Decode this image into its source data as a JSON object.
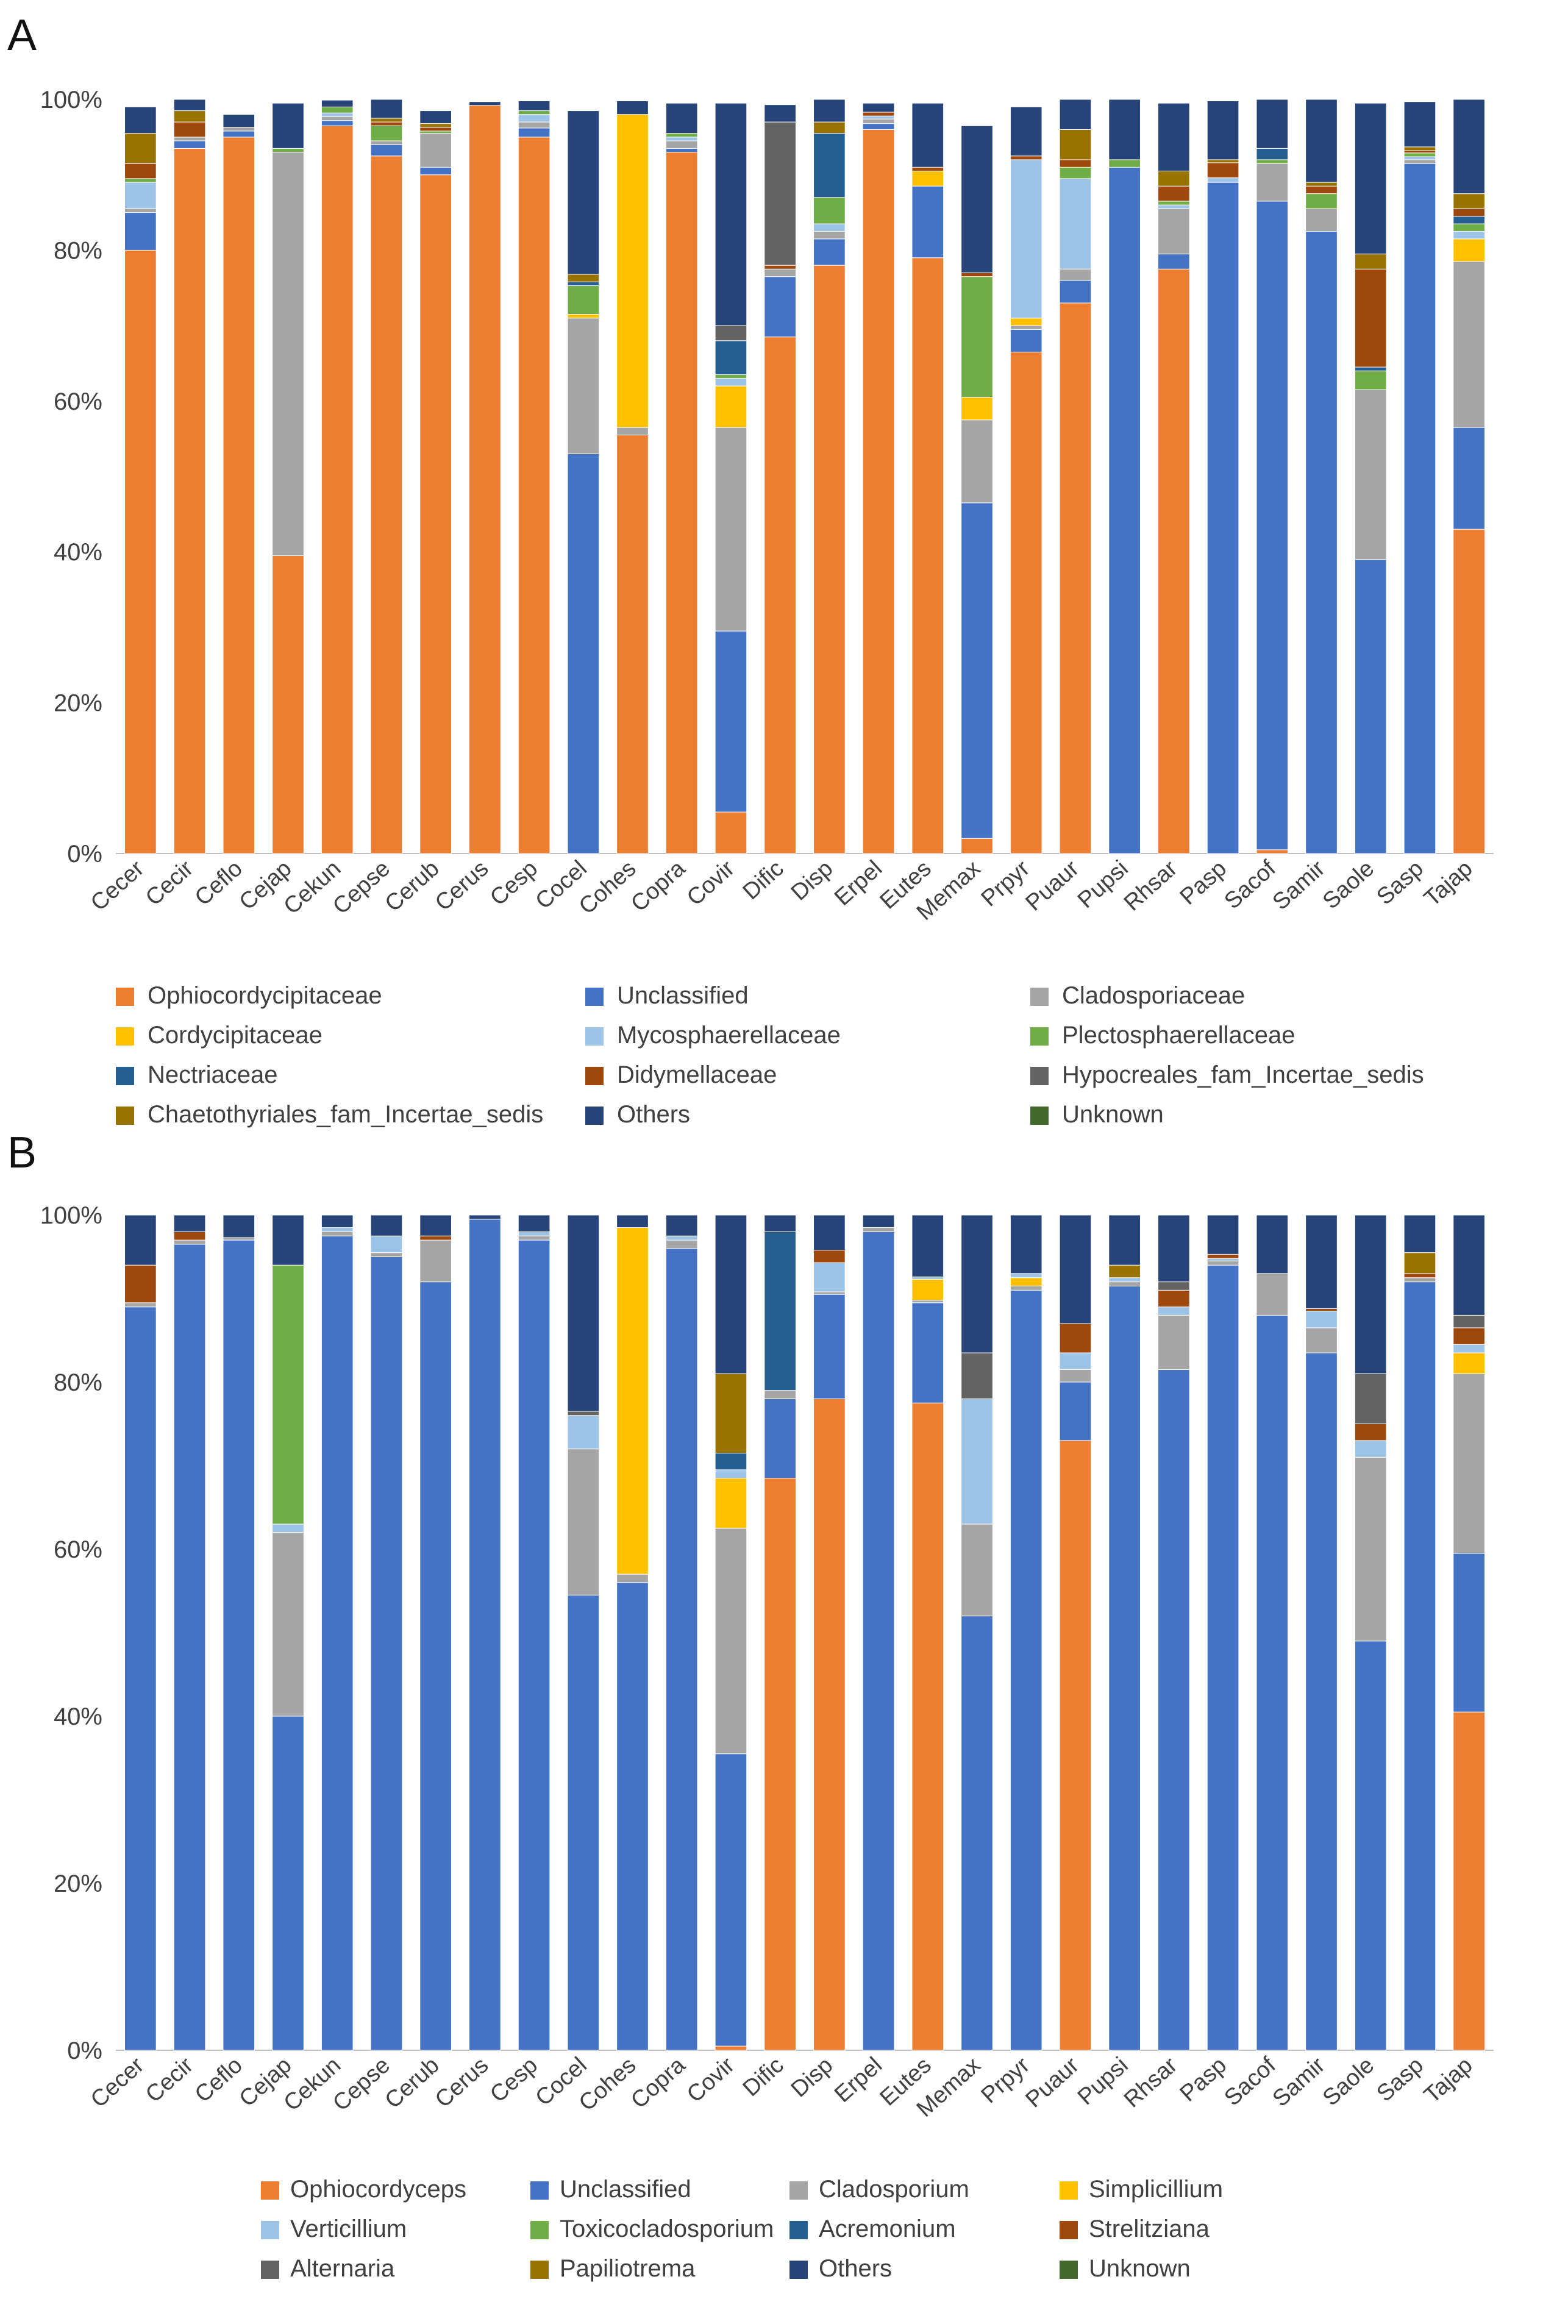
{
  "colors": {
    "orange": "#ED7D31",
    "blue": "#4472C4",
    "gray": "#A5A5A5",
    "yellow": "#FFC000",
    "lightblue": "#9DC3E6",
    "green": "#70AD47",
    "teal": "#255E91",
    "rust": "#9E480E",
    "darkgray": "#636363",
    "olive": "#997300",
    "navy": "#264478",
    "darkgreen": "#43682B"
  },
  "chart_data": [
    {
      "panel": "A",
      "type": "bar",
      "stacked": true,
      "title": "",
      "xlabel": "",
      "ylabel": "",
      "ylim": [
        0,
        100
      ],
      "yticks": [
        "0%",
        "20%",
        "40%",
        "60%",
        "80%",
        "100%"
      ],
      "legend_position": "bottom",
      "categories": [
        "Cecer",
        "Cecir",
        "Ceflo",
        "Cejap",
        "Cekun",
        "Cepse",
        "Cerub",
        "Cerus",
        "Cesp",
        "Cocel",
        "Cohes",
        "Copra",
        "Covir",
        "Dific",
        "Disp",
        "Erpel",
        "Eutes",
        "Memax",
        "Prpyr",
        "Puaur",
        "Pupsi",
        "Rhsar",
        "Pasp",
        "Sacof",
        "Samir",
        "Saole",
        "Sasp",
        "Tajap"
      ],
      "series": [
        {
          "name": "Ophiocordycipitaceae",
          "color": "orange",
          "values": [
            80,
            93.5,
            95,
            39.5,
            96.5,
            92.5,
            90,
            99.2,
            95,
            0,
            55.5,
            93,
            5.5,
            68.5,
            78,
            96,
            79,
            2,
            66.5,
            73,
            0,
            77.5,
            0,
            0.5,
            0,
            0,
            0,
            43
          ]
        },
        {
          "name": "Unclassified",
          "color": "blue",
          "values": [
            5,
            1,
            0.8,
            0,
            0.7,
            1.5,
            1,
            0,
            1.2,
            53,
            0,
            0.5,
            24,
            8,
            3.5,
            0.8,
            9.5,
            44.5,
            3,
            3,
            91,
            2,
            89,
            86,
            82.5,
            39,
            91.5,
            13.5
          ]
        },
        {
          "name": "Cladosporiaceae",
          "color": "gray",
          "values": [
            0.5,
            0.5,
            0.5,
            53.5,
            0.5,
            0.5,
            4.5,
            0,
            0.8,
            18,
            1,
            1,
            27,
            1,
            1,
            0.6,
            0,
            11,
            0.5,
            1.5,
            0,
            6,
            0,
            5,
            3,
            22.5,
            0.5,
            22
          ]
        },
        {
          "name": "Cordycipitaceae",
          "color": "yellow",
          "values": [
            0,
            0,
            0,
            0,
            0,
            0,
            0,
            0,
            0,
            0.5,
            41.5,
            0,
            5.5,
            0,
            0,
            0,
            2,
            3,
            1,
            0,
            0,
            0,
            0,
            0,
            0,
            0,
            0,
            3
          ]
        },
        {
          "name": "Mycosphaerellaceae",
          "color": "lightblue",
          "values": [
            3.5,
            0,
            0,
            0,
            0.5,
            0,
            0,
            0,
            1,
            0,
            0,
            0.5,
            1,
            0,
            1,
            0.4,
            0,
            0,
            21,
            12,
            0,
            0.5,
            0.6,
            0,
            0,
            0,
            0.4,
            1
          ]
        },
        {
          "name": "Plectosphaerellaceae",
          "color": "green",
          "values": [
            0.5,
            0,
            0,
            0.5,
            0.8,
            2,
            0.3,
            0,
            0.5,
            3.8,
            0,
            0.5,
            0.5,
            0,
            3.5,
            0,
            0,
            16,
            0,
            1.5,
            1,
            0.5,
            0,
            0.5,
            2,
            2.5,
            0.5,
            1
          ]
        },
        {
          "name": "Nectriaceae",
          "color": "teal",
          "values": [
            0,
            0,
            0,
            0,
            0,
            0,
            0,
            0,
            0,
            0.5,
            0,
            0,
            4.5,
            0,
            8.5,
            0,
            0,
            0,
            0,
            0,
            0,
            0,
            0,
            1.5,
            0,
            0.5,
            0,
            1
          ]
        },
        {
          "name": "Didymellaceae",
          "color": "rust",
          "values": [
            2,
            2,
            0,
            0,
            0,
            0.5,
            0.5,
            0,
            0,
            0,
            0,
            0,
            0,
            0.5,
            0,
            0.5,
            0.5,
            0.5,
            0.5,
            1,
            0,
            2,
            2,
            0,
            1,
            13,
            0.3,
            1
          ]
        },
        {
          "name": "Hypocreales_fam_Incertae_sedis",
          "color": "darkgray",
          "values": [
            0,
            0,
            0,
            0,
            0,
            0,
            0,
            0,
            0,
            0,
            0,
            0,
            2,
            19,
            0,
            0,
            0,
            0,
            0,
            0,
            0,
            0,
            0,
            0,
            0,
            0,
            0,
            0
          ]
        },
        {
          "name": "Chaetothyriales_fam_Incertae_sedis",
          "color": "olive",
          "values": [
            4,
            1.5,
            0,
            0,
            0,
            0.5,
            0.5,
            0,
            0,
            1,
            0,
            0,
            0,
            0,
            1.5,
            0,
            0,
            0,
            0,
            4,
            0,
            2,
            0.4,
            0,
            0.5,
            2,
            0.5,
            2
          ]
        },
        {
          "name": "Others",
          "color": "navy",
          "values": [
            3.5,
            1.5,
            1.7,
            6,
            0.9,
            2.5,
            1.7,
            0.5,
            1.3,
            21.7,
            1.8,
            4,
            29.5,
            2.3,
            3,
            1.2,
            8.5,
            19.5,
            6.5,
            4,
            8,
            9,
            7.8,
            6.5,
            11,
            20,
            6,
            12.5
          ]
        },
        {
          "name": "Unknown",
          "color": "darkgreen",
          "values": [
            0,
            0,
            0,
            0,
            0,
            0,
            0,
            0,
            0,
            0,
            0,
            0,
            0,
            0,
            0,
            0,
            0,
            0,
            0,
            0,
            0,
            0,
            0,
            0,
            0,
            0,
            0,
            0
          ]
        }
      ]
    },
    {
      "panel": "B",
      "type": "bar",
      "stacked": true,
      "title": "",
      "xlabel": "",
      "ylabel": "",
      "ylim": [
        0,
        100
      ],
      "yticks": [
        "0%",
        "20%",
        "40%",
        "60%",
        "80%",
        "100%"
      ],
      "legend_position": "bottom",
      "categories": [
        "Cecer",
        "Cecir",
        "Ceflo",
        "Cejap",
        "Cekun",
        "Cepse",
        "Cerub",
        "Cerus",
        "Cesp",
        "Cocel",
        "Cohes",
        "Copra",
        "Covir",
        "Dific",
        "Disp",
        "Erpel",
        "Eutes",
        "Memax",
        "Prpyr",
        "Puaur",
        "Pupsi",
        "Rhsar",
        "Pasp",
        "Sacof",
        "Samir",
        "Saole",
        "Sasp",
        "Tajap"
      ],
      "series": [
        {
          "name": "Ophiocordyceps",
          "color": "orange",
          "values": [
            0,
            0,
            0,
            0,
            0,
            0,
            0,
            0,
            0,
            0,
            0,
            0,
            0.5,
            68.5,
            78,
            0,
            77.5,
            0,
            0,
            73,
            0,
            0,
            0,
            0,
            0,
            0,
            0,
            40.5
          ]
        },
        {
          "name": "Unclassified",
          "color": "blue",
          "values": [
            89,
            96.5,
            97,
            40,
            97.5,
            95,
            92,
            99.5,
            97,
            54.5,
            56,
            96,
            35,
            9.5,
            12.5,
            98,
            12,
            52,
            91,
            7,
            91.5,
            81.5,
            94,
            88,
            83.5,
            49,
            92,
            19
          ]
        },
        {
          "name": "Cladosporium",
          "color": "gray",
          "values": [
            0.5,
            0.5,
            0.3,
            22,
            0.5,
            0.5,
            5,
            0,
            0.5,
            17.5,
            1,
            1,
            27,
            1,
            0.3,
            0.5,
            0.3,
            11,
            0.5,
            1.5,
            0.5,
            6.5,
            0.5,
            5,
            3,
            22,
            0.5,
            21.5
          ]
        },
        {
          "name": "Simplicillium",
          "color": "yellow",
          "values": [
            0,
            0,
            0,
            0,
            0,
            0,
            0,
            0,
            0,
            0,
            41.5,
            0,
            6,
            0,
            0,
            0,
            2.5,
            0,
            1,
            0,
            0,
            0,
            0,
            0,
            0,
            0,
            0,
            2.5
          ]
        },
        {
          "name": "Verticillium",
          "color": "lightblue",
          "values": [
            0,
            0,
            0,
            1,
            0.5,
            2,
            0,
            0,
            0.5,
            4,
            0,
            0.5,
            1,
            0,
            3.5,
            0,
            0.3,
            15,
            0.5,
            2,
            0.5,
            1,
            0.3,
            0,
            2,
            2,
            0,
            1
          ]
        },
        {
          "name": "Toxicocladosporium",
          "color": "green",
          "values": [
            0,
            0,
            0,
            31,
            0,
            0,
            0,
            0,
            0,
            0,
            0,
            0,
            0,
            0,
            0,
            0,
            0,
            0,
            0,
            0,
            0,
            0,
            0,
            0,
            0,
            0,
            0,
            0
          ]
        },
        {
          "name": "Acremonium",
          "color": "teal",
          "values": [
            0,
            0,
            0,
            0,
            0,
            0,
            0,
            0,
            0,
            0,
            0,
            0,
            2,
            19,
            0,
            0,
            0,
            0,
            0,
            0,
            0,
            0,
            0,
            0,
            0,
            0,
            0,
            0
          ]
        },
        {
          "name": "Strelitziana",
          "color": "rust",
          "values": [
            4.5,
            1,
            0,
            0,
            0,
            0,
            0.5,
            0,
            0,
            0,
            0,
            0,
            0,
            0,
            1.5,
            0,
            0,
            0,
            0,
            3.5,
            0,
            2,
            0.5,
            0,
            0.3,
            2,
            0.5,
            2
          ]
        },
        {
          "name": "Alternaria",
          "color": "darkgray",
          "values": [
            0,
            0,
            0,
            0,
            0,
            0,
            0,
            0,
            0,
            0.5,
            0,
            0,
            0,
            0,
            0,
            0,
            0,
            5.5,
            0,
            0,
            0,
            1,
            0,
            0,
            0,
            6,
            0,
            1.5
          ]
        },
        {
          "name": "Papiliotrema",
          "color": "olive",
          "values": [
            0,
            0,
            0,
            0,
            0,
            0,
            0,
            0,
            0,
            0,
            0,
            0,
            9.5,
            0,
            0,
            0,
            0,
            0,
            0,
            0,
            1.5,
            0,
            0,
            0,
            0,
            0,
            2.5,
            0
          ]
        },
        {
          "name": "Others",
          "color": "navy",
          "values": [
            6,
            2,
            2.7,
            6,
            1.5,
            2.5,
            2.5,
            0.5,
            2,
            23.5,
            1.5,
            2.5,
            19,
            2,
            4.2,
            1.5,
            7.4,
            16.5,
            7,
            13,
            6,
            8,
            4.7,
            7,
            11.2,
            19,
            4.5,
            12
          ]
        },
        {
          "name": "Unknown",
          "color": "darkgreen",
          "values": [
            0,
            0,
            0,
            0,
            0,
            0,
            0,
            0,
            0,
            0,
            0,
            0,
            0,
            0,
            0,
            0,
            0,
            0,
            0,
            0,
            0,
            0,
            0,
            0,
            0,
            0,
            0,
            0
          ]
        }
      ]
    }
  ]
}
